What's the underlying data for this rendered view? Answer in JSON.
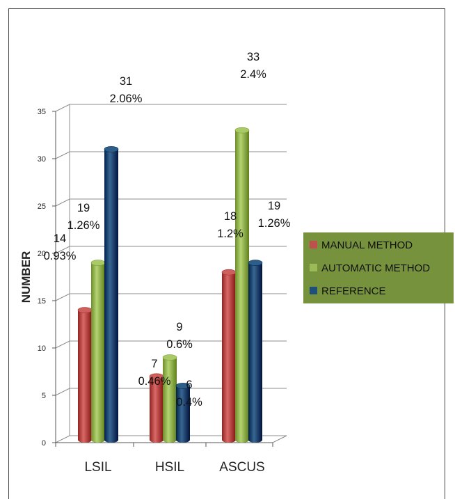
{
  "chart_data": {
    "type": "bar",
    "title": "",
    "xlabel": "",
    "ylabel": "NUMBER",
    "ylim": [
      0,
      35
    ],
    "yticks": [
      0,
      5,
      10,
      15,
      20,
      25,
      30,
      35
    ],
    "grid": true,
    "legend": "right",
    "categories": [
      "LSIL",
      "HSIL",
      "ASCUS"
    ],
    "series": [
      {
        "name": "MANUAL METHOD",
        "color": "#c0504d",
        "values": [
          14,
          7,
          18
        ],
        "labels": [
          [
            "14",
            "0.93%"
          ],
          [
            "7",
            "0.46%"
          ],
          [
            "18",
            "1.2%"
          ]
        ]
      },
      {
        "name": "AUTOMATIC METHOD",
        "color": "#9bbb59",
        "values": [
          19,
          9,
          33
        ],
        "labels": [
          [
            "19",
            "1.26%"
          ],
          [
            "9",
            "0.6%"
          ],
          [
            "33",
            "2.4%"
          ]
        ]
      },
      {
        "name": "REFERENCE",
        "color": "#1f4e79",
        "values": [
          31,
          6,
          19
        ],
        "labels": [
          [
            "31",
            "2.06%"
          ],
          [
            "6",
            "0.4%"
          ],
          [
            "19",
            "1.26%"
          ]
        ]
      }
    ],
    "legend_background": "#76923c"
  }
}
